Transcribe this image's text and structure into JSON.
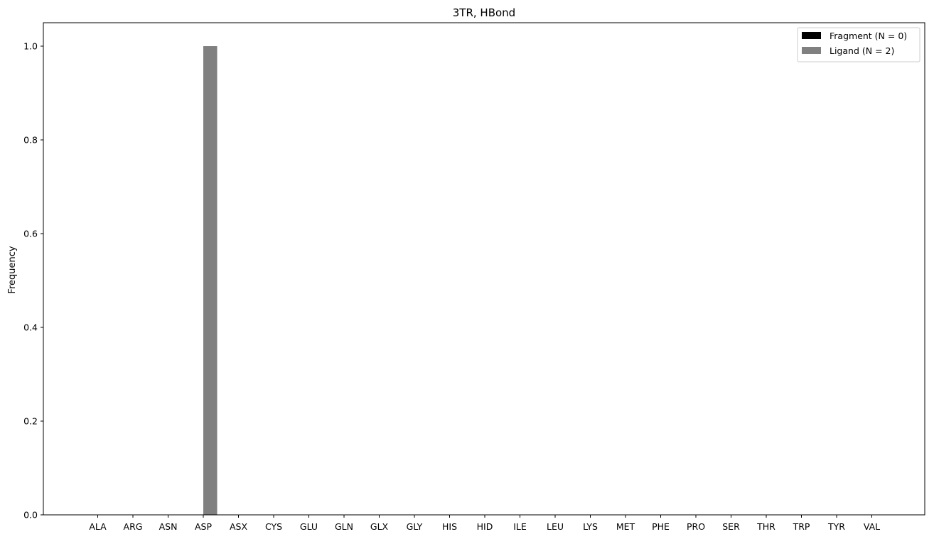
{
  "chart_data": {
    "type": "bar",
    "title": "3TR, HBond",
    "xlabel": "",
    "ylabel": "Frequency",
    "ylim": [
      0,
      1.05
    ],
    "yticks": [
      "0.0",
      "0.2",
      "0.4",
      "0.6",
      "0.8",
      "1.0"
    ],
    "categories": [
      "ALA",
      "ARG",
      "ASN",
      "ASP",
      "ASX",
      "CYS",
      "GLU",
      "GLN",
      "GLX",
      "GLY",
      "HIS",
      "HID",
      "ILE",
      "LEU",
      "LYS",
      "MET",
      "PHE",
      "PRO",
      "SER",
      "THR",
      "TRP",
      "TYR",
      "VAL"
    ],
    "series": [
      {
        "name": "Fragment (N = 0)",
        "color": "#000000",
        "values": [
          0,
          0,
          0,
          0,
          0,
          0,
          0,
          0,
          0,
          0,
          0,
          0,
          0,
          0,
          0,
          0,
          0,
          0,
          0,
          0,
          0,
          0,
          0
        ]
      },
      {
        "name": "Ligand (N = 2)",
        "color": "#808080",
        "values": [
          0,
          0,
          0,
          1.0,
          0,
          0,
          0,
          0,
          0,
          0,
          0,
          0,
          0,
          0,
          0,
          0,
          0,
          0,
          0,
          0,
          0,
          0,
          0
        ]
      }
    ],
    "legend_position": "top-right",
    "grid": false
  }
}
